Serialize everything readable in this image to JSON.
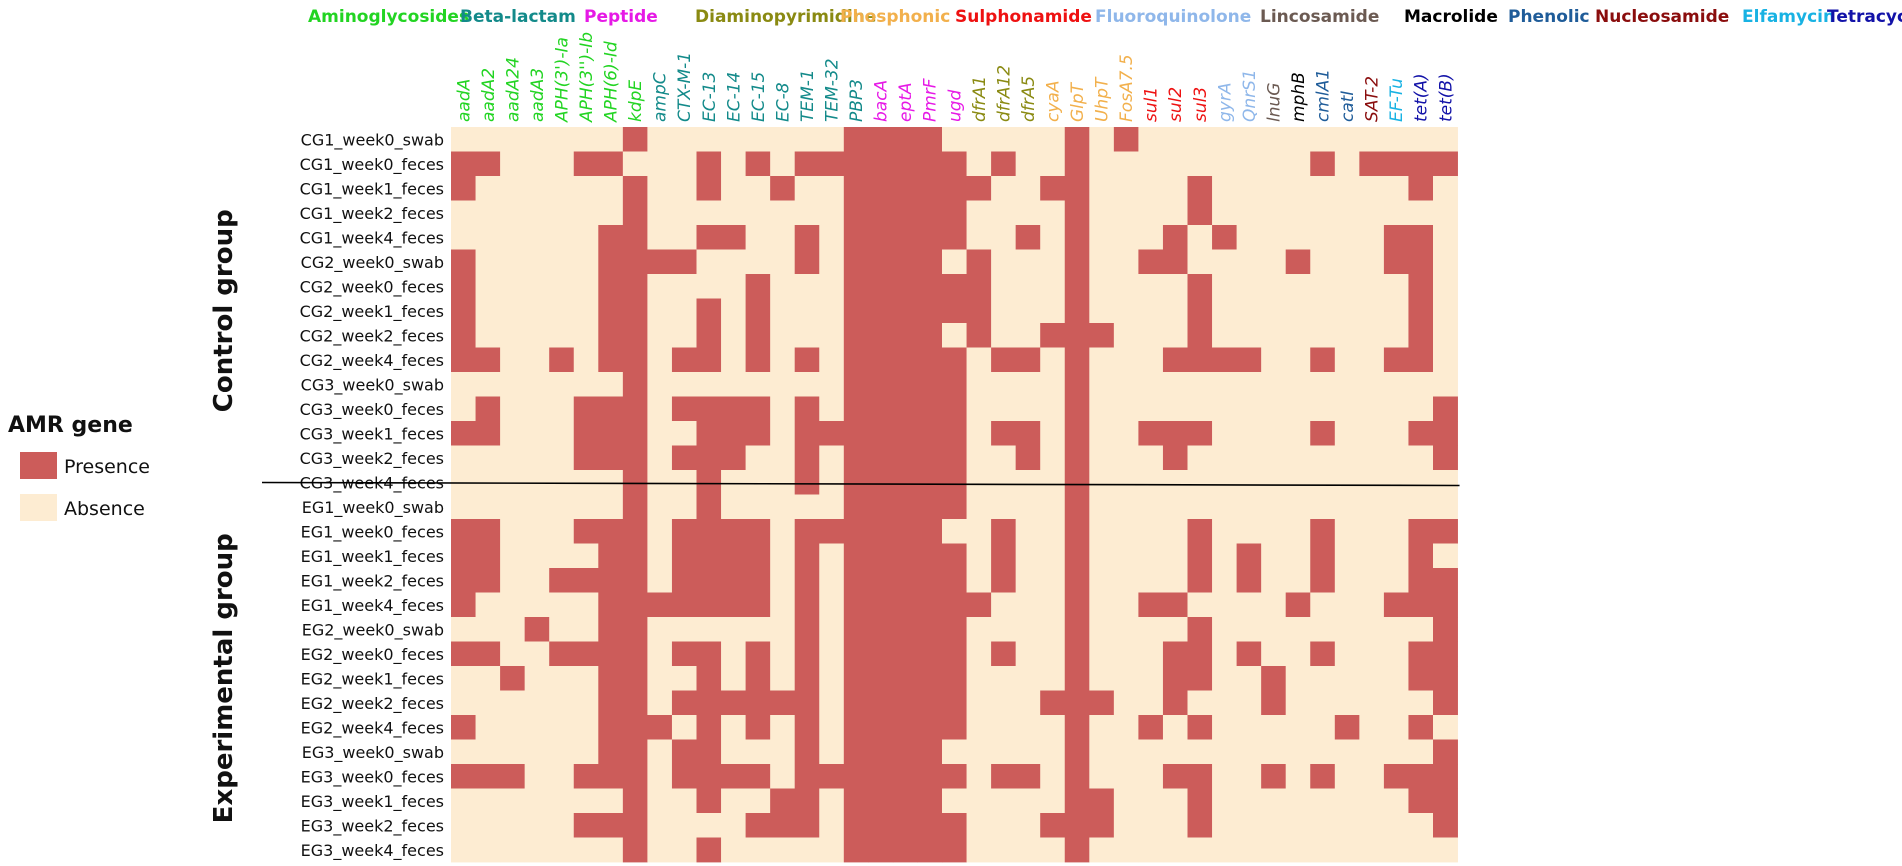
{
  "chart_data": {
    "type": "heatmap",
    "title": "",
    "colors": {
      "presence": "#cc5c5a",
      "absence": "#fdecd2",
      "divider": "#000000"
    },
    "legend": {
      "title": "AMR gene",
      "placement": "left",
      "entries": [
        {
          "label": "Presence",
          "value": 1,
          "color": "#cc5c5a"
        },
        {
          "label": "Absence",
          "value": 0,
          "color": "#fdecd2"
        }
      ]
    },
    "groups": [
      {
        "label": "Control group",
        "rows": 15
      },
      {
        "label": "Experimental group",
        "rows": 15
      }
    ],
    "gene_classes": [
      {
        "name": "Aminoglycosides",
        "color": "#22d422"
      },
      {
        "name": "Beta-lactam",
        "color": "#138a8a"
      },
      {
        "name": "Peptide",
        "color": "#e619e6"
      },
      {
        "name": "Diaminopyrimidine",
        "color": "#8a8a12"
      },
      {
        "name": "Phosphonic",
        "color": "#f2b04c"
      },
      {
        "name": "Sulphonamide",
        "color": "#ee1111"
      },
      {
        "name": "Fluoroquinolone",
        "color": "#8fb7ea"
      },
      {
        "name": "Lincosamide",
        "color": "#6b5a52"
      },
      {
        "name": "Macrolide",
        "color": "#000000"
      },
      {
        "name": "Phenolic",
        "color": "#1f5c99"
      },
      {
        "name": "Nucleosamide",
        "color": "#8a0d0d"
      },
      {
        "name": "Elfamycin",
        "color": "#18b2e3"
      },
      {
        "name": "Tetracycline",
        "color": "#1212a8"
      }
    ],
    "genes": [
      {
        "name": "aadA",
        "class": 0
      },
      {
        "name": "aadA2",
        "class": 0
      },
      {
        "name": "aadA24",
        "class": 0
      },
      {
        "name": "aadA3",
        "class": 0
      },
      {
        "name": "APH(3')-Ia",
        "class": 0
      },
      {
        "name": "APH(3'')-Ib",
        "class": 0
      },
      {
        "name": "APH(6)-Id",
        "class": 0
      },
      {
        "name": "kdpE",
        "class": 0
      },
      {
        "name": "ampC",
        "class": 1
      },
      {
        "name": "CTX-M-1",
        "class": 1
      },
      {
        "name": "EC-13",
        "class": 1
      },
      {
        "name": "EC-14",
        "class": 1
      },
      {
        "name": "EC-15",
        "class": 1
      },
      {
        "name": "EC-8",
        "class": 1
      },
      {
        "name": "TEM-1",
        "class": 1
      },
      {
        "name": "TEM-32",
        "class": 1
      },
      {
        "name": "PBP3",
        "class": 1
      },
      {
        "name": "bacA",
        "class": 2
      },
      {
        "name": "eptA",
        "class": 2
      },
      {
        "name": "PmrF",
        "class": 2
      },
      {
        "name": "ugd",
        "class": 2
      },
      {
        "name": "dfrA1",
        "class": 3
      },
      {
        "name": "dfrA12",
        "class": 3
      },
      {
        "name": "dfrA5",
        "class": 3
      },
      {
        "name": "cyaA",
        "class": 4
      },
      {
        "name": "GlpT",
        "class": 4
      },
      {
        "name": "UhpT",
        "class": 4
      },
      {
        "name": "FosA7.5",
        "class": 4
      },
      {
        "name": "sul1",
        "class": 5
      },
      {
        "name": "sul2",
        "class": 5
      },
      {
        "name": "sul3",
        "class": 5
      },
      {
        "name": "gyrA",
        "class": 6
      },
      {
        "name": "QnrS1",
        "class": 6
      },
      {
        "name": "lnuG",
        "class": 7
      },
      {
        "name": "mphB",
        "class": 8
      },
      {
        "name": "cmlA1",
        "class": 9
      },
      {
        "name": "catI",
        "class": 9
      },
      {
        "name": "SAT-2",
        "class": 10
      },
      {
        "name": "EF-Tu",
        "class": 11
      },
      {
        "name": "tet(A)",
        "class": 12
      },
      {
        "name": "tet(B)",
        "class": 12
      }
    ],
    "samples": [
      "CG1_week0_swab",
      "CG1_week0_feces",
      "CG1_week1_feces",
      "CG1_week2_feces",
      "CG1_week4_feces",
      "CG2_week0_swab",
      "CG2_week0_feces",
      "CG2_week1_feces",
      "CG2_week2_feces",
      "CG2_week4_feces",
      "CG3_week0_swab",
      "CG3_week0_feces",
      "CG3_week1_feces",
      "CG3_week2_feces",
      "CG3_week4_feces",
      "EG1_week0_swab",
      "EG1_week0_feces",
      "EG1_week1_feces",
      "EG1_week2_feces",
      "EG1_week4_feces",
      "EG2_week0_swab",
      "EG2_week0_feces",
      "EG2_week1_feces",
      "EG2_week2_feces",
      "EG2_week4_feces",
      "EG3_week0_swab",
      "EG3_week0_feces",
      "EG3_week1_feces",
      "EG3_week2_feces",
      "EG3_week4_feces"
    ],
    "matrix": [
      [
        0,
        0,
        0,
        0,
        0,
        0,
        0,
        1,
        0,
        0,
        0,
        0,
        0,
        0,
        0,
        0,
        1,
        1,
        1,
        1,
        0,
        0,
        0,
        0,
        0,
        1,
        0,
        1,
        0,
        0,
        0,
        0,
        0,
        0,
        0,
        0,
        0,
        0,
        0,
        0,
        0
      ],
      [
        1,
        1,
        0,
        0,
        0,
        1,
        1,
        0,
        0,
        0,
        1,
        0,
        1,
        0,
        1,
        1,
        1,
        1,
        1,
        1,
        1,
        0,
        1,
        0,
        0,
        1,
        0,
        0,
        0,
        0,
        0,
        0,
        0,
        0,
        0,
        1,
        0,
        1,
        1,
        1,
        1
      ],
      [
        1,
        0,
        0,
        0,
        0,
        0,
        0,
        1,
        0,
        0,
        1,
        0,
        0,
        1,
        0,
        0,
        1,
        1,
        1,
        1,
        1,
        1,
        0,
        0,
        1,
        1,
        0,
        0,
        0,
        0,
        1,
        0,
        0,
        0,
        0,
        0,
        0,
        0,
        0,
        1,
        0
      ],
      [
        0,
        0,
        0,
        0,
        0,
        0,
        0,
        1,
        0,
        0,
        0,
        0,
        0,
        0,
        0,
        0,
        1,
        1,
        1,
        1,
        1,
        0,
        0,
        0,
        0,
        1,
        0,
        0,
        0,
        0,
        1,
        0,
        0,
        0,
        0,
        0,
        0,
        0,
        0,
        0,
        0
      ],
      [
        0,
        0,
        0,
        0,
        0,
        0,
        1,
        1,
        0,
        0,
        1,
        1,
        0,
        0,
        1,
        0,
        1,
        1,
        1,
        1,
        1,
        0,
        0,
        1,
        0,
        1,
        0,
        0,
        0,
        1,
        0,
        1,
        0,
        0,
        0,
        0,
        0,
        0,
        1,
        1,
        0
      ],
      [
        1,
        0,
        0,
        0,
        0,
        0,
        1,
        1,
        1,
        1,
        0,
        0,
        0,
        0,
        1,
        0,
        1,
        1,
        1,
        1,
        0,
        1,
        0,
        0,
        0,
        1,
        0,
        0,
        1,
        1,
        0,
        0,
        0,
        0,
        1,
        0,
        0,
        0,
        1,
        1,
        0
      ],
      [
        1,
        0,
        0,
        0,
        0,
        0,
        1,
        1,
        0,
        0,
        0,
        0,
        1,
        0,
        0,
        0,
        1,
        1,
        1,
        1,
        1,
        1,
        0,
        0,
        0,
        1,
        0,
        0,
        0,
        0,
        1,
        0,
        0,
        0,
        0,
        0,
        0,
        0,
        0,
        1,
        0
      ],
      [
        1,
        0,
        0,
        0,
        0,
        0,
        1,
        1,
        0,
        0,
        1,
        0,
        1,
        0,
        0,
        0,
        1,
        1,
        1,
        1,
        1,
        1,
        0,
        0,
        0,
        1,
        0,
        0,
        0,
        0,
        1,
        0,
        0,
        0,
        0,
        0,
        0,
        0,
        0,
        1,
        0
      ],
      [
        1,
        0,
        0,
        0,
        0,
        0,
        1,
        1,
        0,
        0,
        1,
        0,
        1,
        0,
        0,
        0,
        1,
        1,
        1,
        1,
        0,
        1,
        0,
        0,
        1,
        1,
        1,
        0,
        0,
        0,
        1,
        0,
        0,
        0,
        0,
        0,
        0,
        0,
        0,
        1,
        0
      ],
      [
        1,
        1,
        0,
        0,
        1,
        0,
        1,
        1,
        0,
        1,
        1,
        0,
        1,
        0,
        1,
        0,
        1,
        1,
        1,
        1,
        1,
        0,
        1,
        1,
        0,
        1,
        0,
        0,
        0,
        1,
        1,
        1,
        1,
        0,
        0,
        1,
        0,
        0,
        1,
        1,
        0
      ],
      [
        0,
        0,
        0,
        0,
        0,
        0,
        0,
        1,
        0,
        0,
        0,
        0,
        0,
        0,
        0,
        0,
        1,
        1,
        1,
        1,
        1,
        0,
        0,
        0,
        0,
        1,
        0,
        0,
        0,
        0,
        0,
        0,
        0,
        0,
        0,
        0,
        0,
        0,
        0,
        0,
        0
      ],
      [
        0,
        1,
        0,
        0,
        0,
        1,
        1,
        1,
        0,
        1,
        1,
        1,
        1,
        0,
        1,
        0,
        1,
        1,
        1,
        1,
        1,
        0,
        0,
        0,
        0,
        1,
        0,
        0,
        0,
        0,
        0,
        0,
        0,
        0,
        0,
        0,
        0,
        0,
        0,
        0,
        1
      ],
      [
        1,
        1,
        0,
        0,
        0,
        1,
        1,
        1,
        0,
        0,
        1,
        1,
        1,
        0,
        1,
        1,
        1,
        1,
        1,
        1,
        1,
        0,
        1,
        1,
        0,
        1,
        0,
        0,
        1,
        1,
        1,
        0,
        0,
        0,
        0,
        1,
        0,
        0,
        0,
        1,
        1
      ],
      [
        0,
        0,
        0,
        0,
        0,
        1,
        1,
        1,
        0,
        1,
        1,
        1,
        0,
        0,
        1,
        0,
        1,
        1,
        1,
        1,
        1,
        0,
        0,
        1,
        0,
        1,
        0,
        0,
        0,
        1,
        0,
        0,
        0,
        0,
        0,
        0,
        0,
        0,
        0,
        0,
        1
      ],
      [
        0,
        0,
        0,
        0,
        0,
        0,
        0,
        1,
        0,
        0,
        1,
        0,
        0,
        0,
        1,
        0,
        1,
        1,
        1,
        1,
        1,
        0,
        0,
        0,
        0,
        1,
        0,
        0,
        0,
        0,
        0,
        0,
        0,
        0,
        0,
        0,
        0,
        0,
        0,
        0,
        0
      ],
      [
        0,
        0,
        0,
        0,
        0,
        0,
        0,
        1,
        0,
        0,
        1,
        0,
        0,
        0,
        0,
        0,
        1,
        1,
        1,
        1,
        1,
        0,
        0,
        0,
        0,
        1,
        0,
        0,
        0,
        0,
        0,
        0,
        0,
        0,
        0,
        0,
        0,
        0,
        0,
        0,
        0
      ],
      [
        1,
        1,
        0,
        0,
        0,
        1,
        1,
        1,
        0,
        1,
        1,
        1,
        1,
        0,
        1,
        1,
        1,
        1,
        1,
        1,
        0,
        0,
        1,
        0,
        0,
        1,
        0,
        0,
        0,
        0,
        1,
        0,
        0,
        0,
        0,
        1,
        0,
        0,
        0,
        1,
        1
      ],
      [
        1,
        1,
        0,
        0,
        0,
        0,
        1,
        1,
        0,
        1,
        1,
        1,
        1,
        0,
        1,
        0,
        1,
        1,
        1,
        1,
        1,
        0,
        1,
        0,
        0,
        1,
        0,
        0,
        0,
        0,
        1,
        0,
        1,
        0,
        0,
        1,
        0,
        0,
        0,
        1,
        0
      ],
      [
        1,
        1,
        0,
        0,
        1,
        1,
        1,
        1,
        0,
        1,
        1,
        1,
        1,
        0,
        1,
        0,
        1,
        1,
        1,
        1,
        1,
        0,
        1,
        0,
        0,
        1,
        0,
        0,
        0,
        0,
        1,
        0,
        1,
        0,
        0,
        1,
        0,
        0,
        0,
        1,
        1
      ],
      [
        1,
        0,
        0,
        0,
        0,
        0,
        1,
        1,
        1,
        1,
        1,
        1,
        1,
        0,
        1,
        0,
        1,
        1,
        1,
        1,
        1,
        1,
        0,
        0,
        0,
        1,
        0,
        0,
        1,
        1,
        0,
        0,
        0,
        0,
        1,
        0,
        0,
        0,
        1,
        1,
        1
      ],
      [
        0,
        0,
        0,
        1,
        0,
        0,
        1,
        1,
        0,
        0,
        0,
        0,
        0,
        0,
        1,
        0,
        1,
        1,
        1,
        1,
        1,
        0,
        0,
        0,
        0,
        1,
        0,
        0,
        0,
        0,
        1,
        0,
        0,
        0,
        0,
        0,
        0,
        0,
        0,
        0,
        1
      ],
      [
        1,
        1,
        0,
        0,
        1,
        1,
        1,
        1,
        0,
        1,
        1,
        0,
        1,
        0,
        1,
        0,
        1,
        1,
        1,
        1,
        1,
        0,
        1,
        0,
        0,
        1,
        0,
        0,
        0,
        1,
        1,
        0,
        1,
        0,
        0,
        1,
        0,
        0,
        0,
        1,
        1
      ],
      [
        0,
        0,
        1,
        0,
        0,
        0,
        1,
        1,
        0,
        0,
        1,
        0,
        1,
        0,
        1,
        0,
        1,
        1,
        1,
        1,
        1,
        0,
        0,
        0,
        0,
        1,
        0,
        0,
        0,
        1,
        1,
        0,
        0,
        1,
        0,
        0,
        0,
        0,
        0,
        1,
        1
      ],
      [
        0,
        0,
        0,
        0,
        0,
        0,
        1,
        1,
        0,
        1,
        1,
        1,
        1,
        1,
        1,
        0,
        1,
        1,
        1,
        1,
        1,
        0,
        0,
        0,
        1,
        1,
        1,
        0,
        0,
        1,
        0,
        0,
        0,
        1,
        0,
        0,
        0,
        0,
        0,
        0,
        1
      ],
      [
        1,
        0,
        0,
        0,
        0,
        0,
        1,
        1,
        1,
        0,
        1,
        0,
        1,
        0,
        1,
        0,
        1,
        1,
        1,
        1,
        1,
        0,
        0,
        0,
        0,
        1,
        0,
        0,
        1,
        0,
        1,
        0,
        0,
        0,
        0,
        0,
        1,
        0,
        0,
        1,
        0
      ],
      [
        0,
        0,
        0,
        0,
        0,
        0,
        1,
        1,
        0,
        1,
        1,
        0,
        0,
        0,
        1,
        0,
        1,
        1,
        1,
        1,
        0,
        0,
        0,
        0,
        0,
        1,
        0,
        0,
        0,
        0,
        0,
        0,
        0,
        0,
        0,
        0,
        0,
        0,
        0,
        0,
        1
      ],
      [
        1,
        1,
        1,
        0,
        0,
        1,
        1,
        1,
        0,
        1,
        1,
        1,
        1,
        0,
        1,
        1,
        1,
        1,
        1,
        1,
        1,
        0,
        1,
        1,
        0,
        1,
        0,
        0,
        0,
        1,
        1,
        0,
        0,
        1,
        0,
        1,
        0,
        0,
        1,
        1,
        1
      ],
      [
        0,
        0,
        0,
        0,
        0,
        0,
        0,
        1,
        0,
        0,
        1,
        0,
        0,
        1,
        1,
        0,
        1,
        1,
        1,
        1,
        0,
        0,
        0,
        0,
        0,
        1,
        1,
        0,
        0,
        0,
        1,
        0,
        0,
        0,
        0,
        0,
        0,
        0,
        0,
        1,
        1
      ],
      [
        0,
        0,
        0,
        0,
        0,
        1,
        1,
        1,
        0,
        0,
        0,
        0,
        1,
        1,
        1,
        0,
        1,
        1,
        1,
        1,
        1,
        0,
        0,
        0,
        1,
        1,
        1,
        0,
        0,
        0,
        1,
        0,
        0,
        0,
        0,
        0,
        0,
        0,
        0,
        0,
        1
      ],
      [
        0,
        0,
        0,
        0,
        0,
        0,
        0,
        1,
        0,
        0,
        1,
        0,
        0,
        0,
        0,
        0,
        1,
        1,
        1,
        1,
        1,
        0,
        0,
        0,
        0,
        1,
        0,
        0,
        0,
        0,
        0,
        0,
        0,
        0,
        0,
        0,
        0,
        0,
        0,
        0,
        0
      ]
    ]
  }
}
